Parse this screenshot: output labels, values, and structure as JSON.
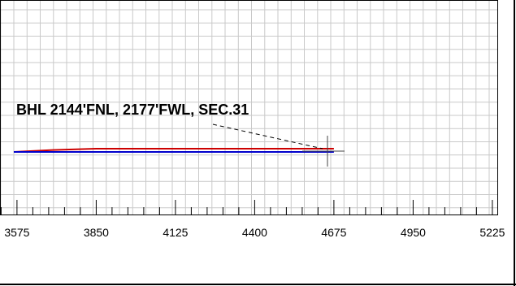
{
  "chart_data": {
    "type": "line",
    "title": "",
    "annotation": "BHL 2144'FNL, 2177'FWL, SEC.31",
    "xlabel": "",
    "ylabel": "",
    "x_ticks": [
      3575,
      3850,
      4125,
      4400,
      4675,
      4950,
      5225
    ],
    "xlim": [
      3564,
      5244
    ],
    "grid": true,
    "series": [
      {
        "color": "#cc0000",
        "x": [
          3564,
          3700,
          3850,
          4125,
          4400,
          4675
        ],
        "y": [
          0.0,
          0.6,
          1.0,
          1.0,
          1.0,
          1.0
        ]
      },
      {
        "color": "#0000cc",
        "x": [
          3564,
          3850,
          4125,
          4400,
          4675
        ],
        "y": [
          0.0,
          0.0,
          0.0,
          0.0,
          0.0
        ]
      }
    ]
  }
}
